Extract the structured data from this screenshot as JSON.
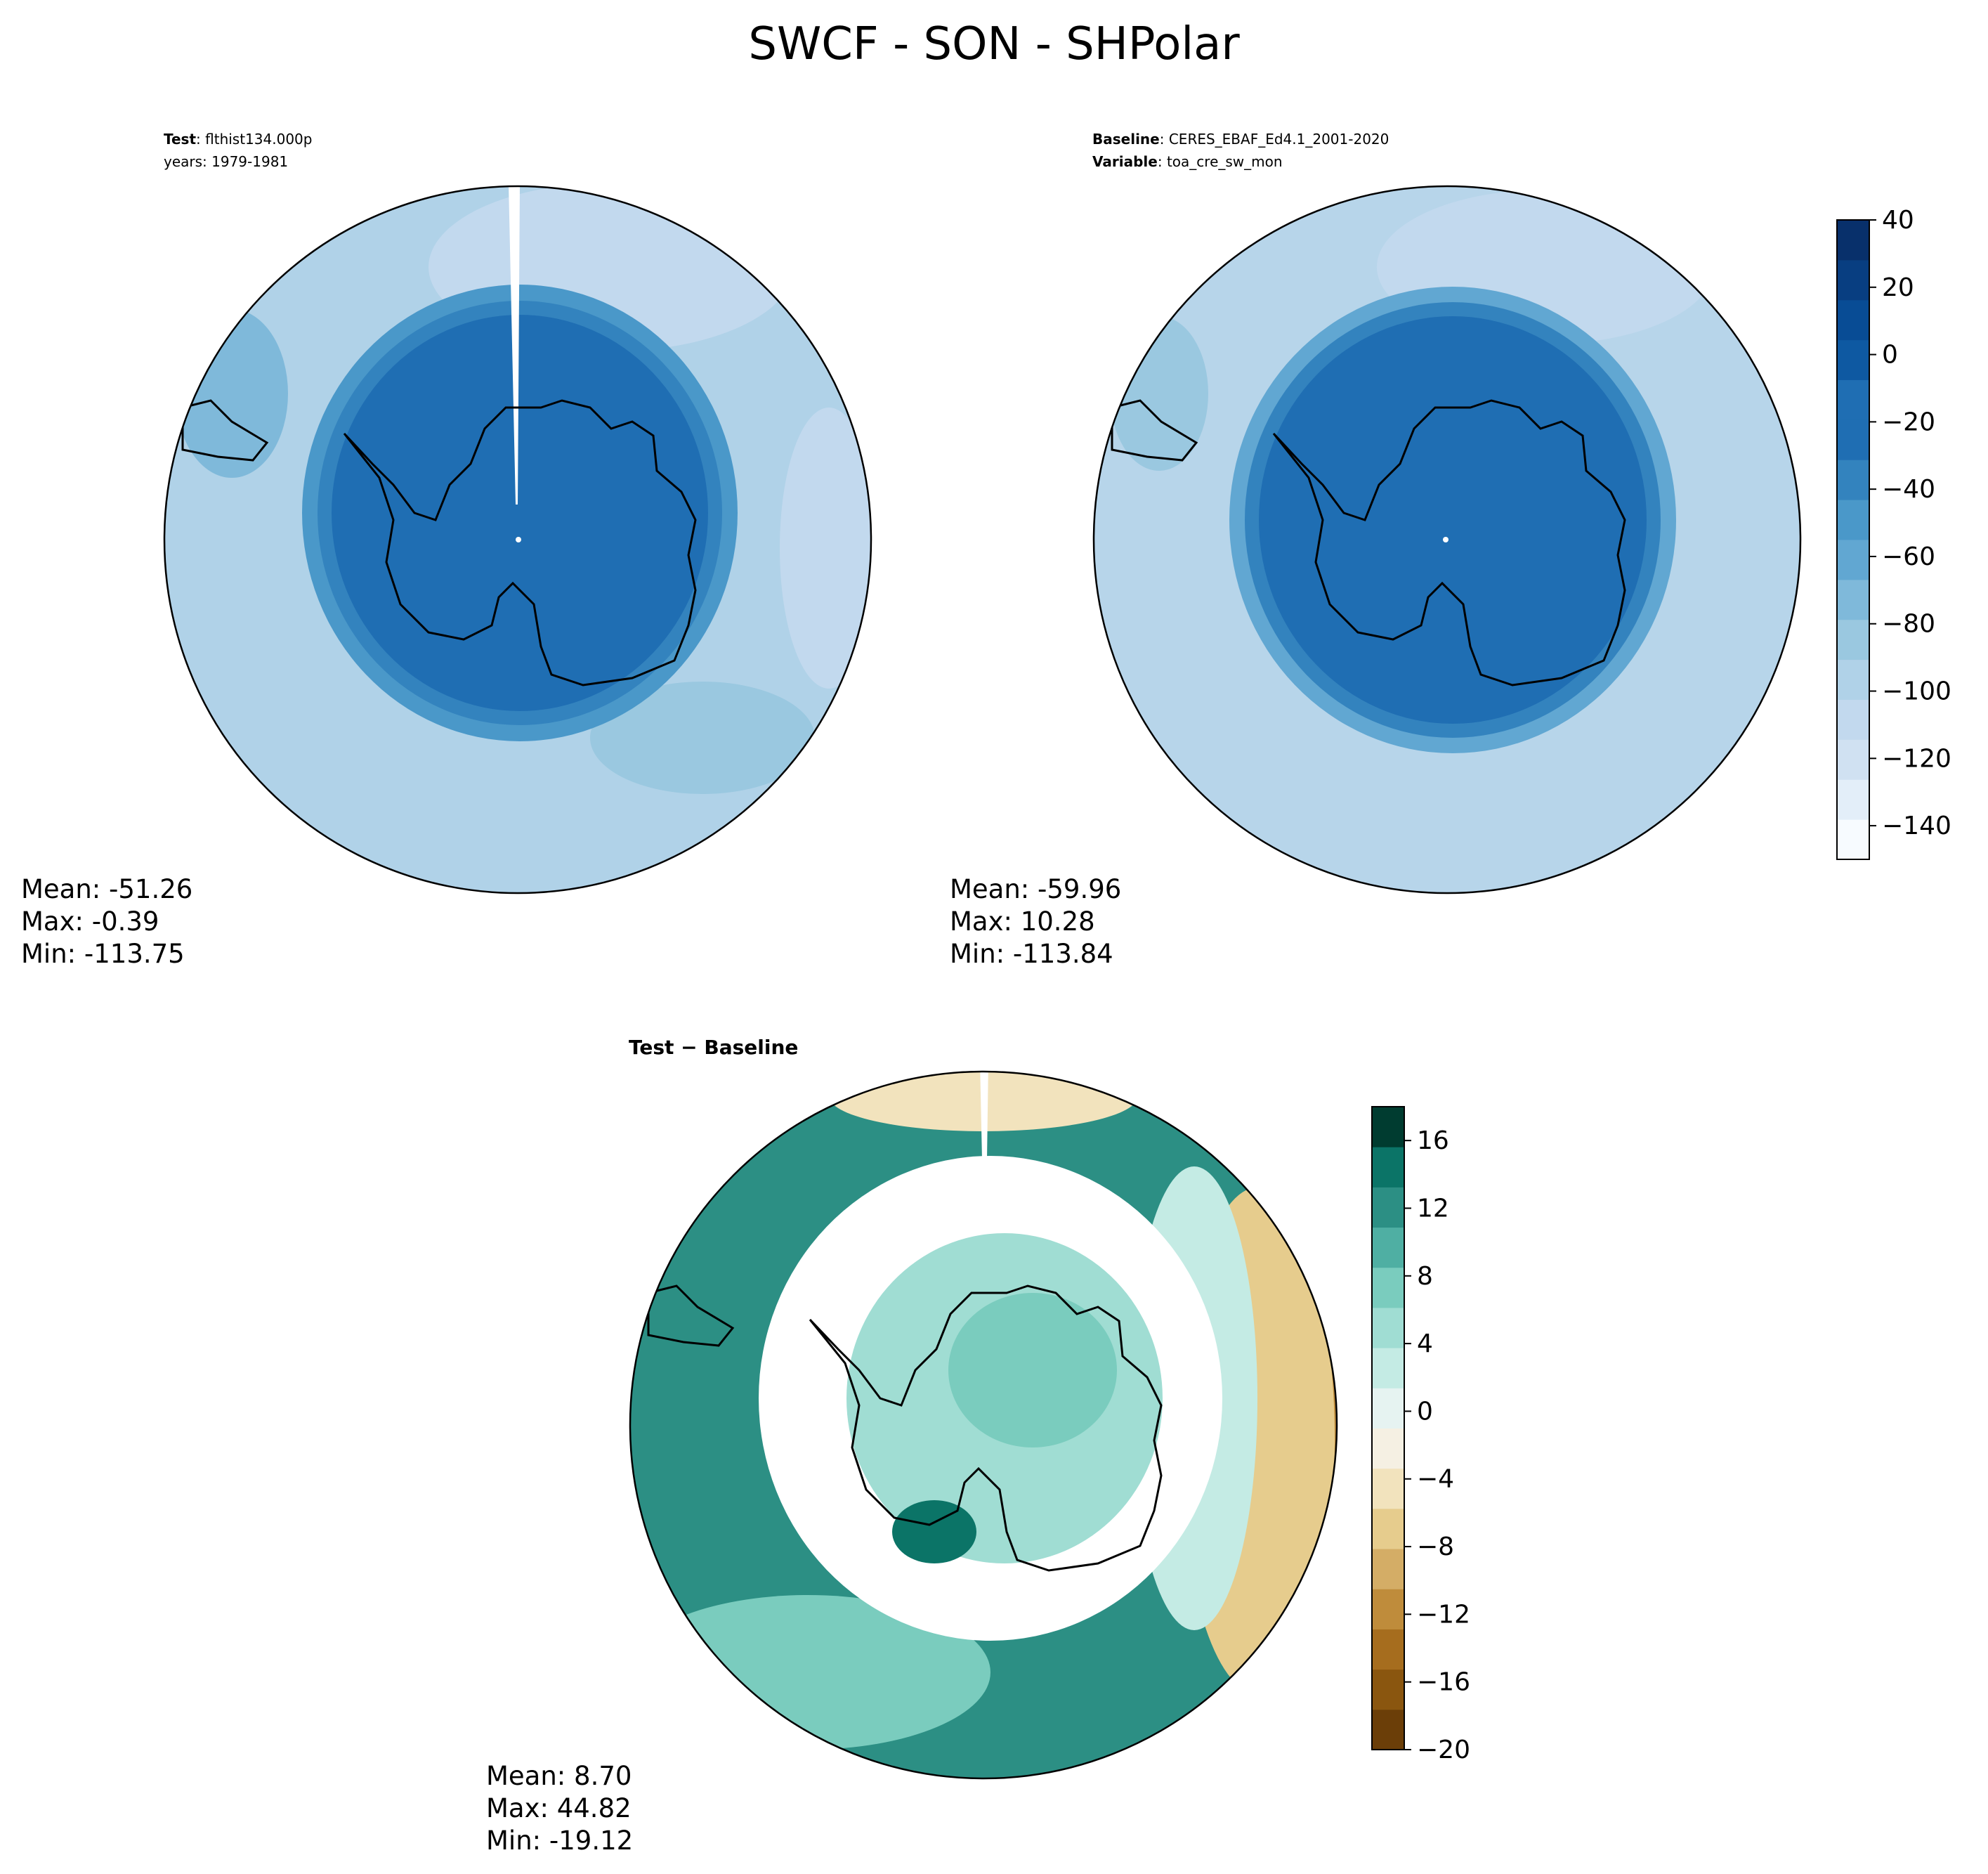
{
  "figure": {
    "title": "SWCF - SON - SHPolar"
  },
  "panels": {
    "test": {
      "header": [
        {
          "bold": "Test",
          "sep": ": ",
          "text": "flthist134.000p"
        },
        {
          "bold": "",
          "sep": "",
          "text": "years: 1979-1981"
        }
      ],
      "stats": [
        "Mean: -51.26",
        "Max: -0.39",
        "Min: -113.75"
      ]
    },
    "baseline": {
      "header": [
        {
          "bold": "Baseline",
          "sep": ": ",
          "text": "CERES_EBAF_Ed4.1_2001-2020"
        },
        {
          "bold": "Variable",
          "sep": ": ",
          "text": "toa_cre_sw_mon"
        }
      ],
      "stats": [
        "Mean: -59.96",
        "Max: 10.28",
        "Min: -113.84"
      ]
    },
    "diff": {
      "title": "Test − Baseline",
      "stats": [
        "Mean:  8.70",
        "Max: 44.82",
        "Min: -19.12"
      ]
    }
  },
  "colors": {
    "swcf_scale": [
      "#f7fbff",
      "#e3eef9",
      "#d0e1f2",
      "#c2d9ee",
      "#b0d2e8",
      "#9ac8e0",
      "#7fb9da",
      "#61a7d2",
      "#4a98c9",
      "#3383be",
      "#1f6eb3",
      "#1f6eb3",
      "#0e59a2",
      "#084c95",
      "#083e81",
      "#08306b"
    ],
    "diff_scale": [
      "#6b3e08",
      "#8a560f",
      "#a66d1e",
      "#bf8c3b",
      "#d4ad66",
      "#e6cc8d",
      "#f2e3bd",
      "#f5f0e3",
      "#e6f3f1",
      "#c4ebe4",
      "#a0ddd3",
      "#7accbe",
      "#4fafa3",
      "#2c8f84",
      "#0b7467",
      "#003c30"
    ],
    "polar_cap": "#1f6eb3",
    "outer_ring_test": "#b0d2e8",
    "outer_ring_baseline": "#b7d5ea"
  },
  "chart_data": [
    {
      "type": "heatmap",
      "name": "Test",
      "projection": "south-polar-stereographic",
      "stats": {
        "mean": -51.26,
        "max": -0.39,
        "min": -113.75
      },
      "colorbar": null
    },
    {
      "type": "heatmap",
      "name": "Baseline",
      "projection": "south-polar-stereographic",
      "stats": {
        "mean": -59.96,
        "max": 10.28,
        "min": -113.84
      },
      "colorbar": {
        "levels": [
          -150,
          -140,
          -130,
          -120,
          -110,
          -100,
          -90,
          -80,
          -70,
          -60,
          -50,
          -40,
          -30,
          -20,
          -10,
          0,
          10,
          20,
          30,
          40
        ],
        "tick_labels": [
          "40",
          "20",
          "0",
          "−20",
          "−40",
          "−60",
          "−80",
          "−100",
          "−120",
          "−140"
        ],
        "tick_values": [
          40,
          20,
          0,
          -20,
          -40,
          -60,
          -80,
          -100,
          -120,
          -140
        ],
        "range": [
          -150,
          40
        ]
      }
    },
    {
      "type": "heatmap",
      "name": "Test − Baseline",
      "projection": "south-polar-stereographic",
      "stats": {
        "mean": 8.7,
        "max": 44.82,
        "min": -19.12
      },
      "colorbar": {
        "tick_labels": [
          "16",
          "12",
          "8",
          "4",
          "0",
          "−4",
          "−8",
          "−12",
          "−16",
          "−20"
        ],
        "tick_values": [
          16,
          12,
          8,
          4,
          0,
          -4,
          -8,
          -12,
          -16,
          -20
        ],
        "range": [
          -20,
          18
        ]
      }
    }
  ]
}
